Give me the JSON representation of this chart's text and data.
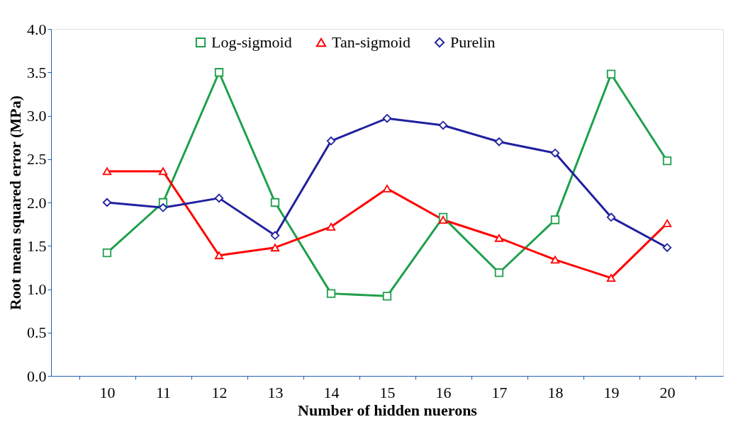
{
  "chart_data": {
    "type": "line",
    "xlabel": "Number of hidden nuerons",
    "ylabel": "Root mean squared error (MPa)",
    "categories": [
      "10",
      "11",
      "12",
      "13",
      "14",
      "15",
      "16",
      "17",
      "18",
      "19",
      "20"
    ],
    "series": [
      {
        "name": "Log-sigmoid",
        "color": "#1ea04c",
        "marker": "square",
        "values": [
          1.42,
          2.0,
          3.5,
          2.0,
          0.95,
          0.92,
          1.83,
          1.19,
          1.8,
          3.48,
          2.48
        ]
      },
      {
        "name": "Tan-sigmoid",
        "color": "#ff0000",
        "marker": "triangle",
        "values": [
          2.36,
          2.36,
          1.39,
          1.48,
          1.72,
          2.16,
          1.8,
          1.59,
          1.34,
          1.13,
          1.76
        ]
      },
      {
        "name": "Purelin",
        "color": "#2020a0",
        "marker": "diamond",
        "values": [
          2.0,
          1.94,
          2.05,
          1.62,
          2.71,
          2.97,
          2.89,
          2.7,
          2.57,
          1.83,
          1.48
        ]
      }
    ],
    "ylim": [
      0,
      4
    ],
    "yticks": [
      {
        "value": 0,
        "label": "0.0"
      },
      {
        "value": 0.5,
        "label": "0.5"
      },
      {
        "value": 1,
        "label": "1.0"
      },
      {
        "value": 1.5,
        "label": "1.5"
      },
      {
        "value": 2,
        "label": "2.0"
      },
      {
        "value": 2.5,
        "label": "2.5"
      },
      {
        "value": 3,
        "label": "3.0"
      },
      {
        "value": 3.5,
        "label": "3.5"
      },
      {
        "value": 4,
        "label": "4.0"
      }
    ],
    "legend": "top",
    "grid": false,
    "line_style": "solid"
  }
}
